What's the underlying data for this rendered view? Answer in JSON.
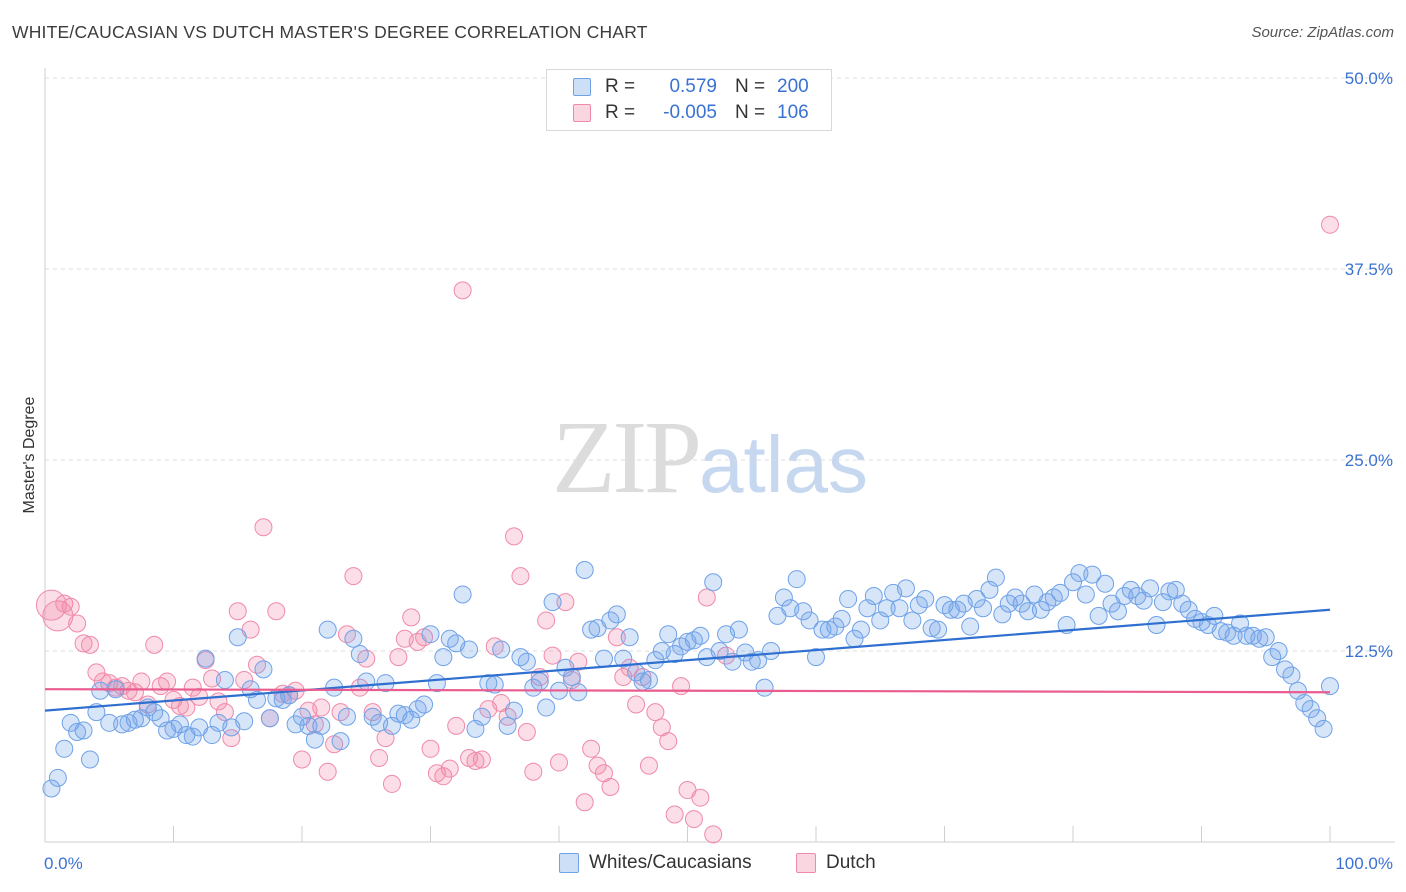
{
  "title": "WHITE/CAUCASIAN VS DUTCH MASTER'S DEGREE CORRELATION CHART",
  "source": "Source: ZipAtlas.com",
  "watermark": {
    "zip": "ZIP",
    "atlas": "atlas"
  },
  "legend": {
    "rows": [
      {
        "r_label": "R =",
        "r_value": "0.579",
        "n_label": "N =",
        "n_value": "200",
        "color": "#6fa2e8"
      },
      {
        "r_label": "R =",
        "r_value": "-0.005",
        "n_label": "N =",
        "n_value": "106",
        "color": "#f08aaa"
      }
    ]
  },
  "bottom_legend": [
    {
      "label": "Whites/Caucasians",
      "color": "#6fa2e8"
    },
    {
      "label": "Dutch",
      "color": "#f08aaa"
    }
  ],
  "chart_data": {
    "type": "scatter",
    "title": "WHITE/CAUCASIAN VS DUTCH MASTER'S DEGREE CORRELATION CHART",
    "ylabel": "Master's Degree",
    "xlabel": "",
    "xlim": [
      0,
      100
    ],
    "ylim": [
      0,
      50
    ],
    "x_tick_labels": [
      "0.0%",
      "100.0%"
    ],
    "y_tick_labels": [
      "12.5%",
      "25.0%",
      "37.5%",
      "50.0%"
    ],
    "y_ticks": [
      12.5,
      25.0,
      37.5,
      50.0
    ],
    "grid": "horizontal dashed",
    "series": [
      {
        "name": "Whites/Caucasians",
        "color": "#6fa2e8",
        "trend": {
          "x": [
            0,
            100
          ],
          "y": [
            8.6,
            15.2
          ]
        },
        "points": [
          [
            0.5,
            3.5
          ],
          [
            1,
            4.2
          ],
          [
            1.5,
            6.1
          ],
          [
            2,
            7.8
          ],
          [
            2.5,
            7.2
          ],
          [
            3,
            7.3
          ],
          [
            3.5,
            5.4
          ],
          [
            4,
            8.5
          ],
          [
            4.3,
            9.9
          ],
          [
            5,
            7.8
          ],
          [
            5.5,
            10
          ],
          [
            6,
            7.7
          ],
          [
            6.5,
            7.8
          ],
          [
            7,
            8
          ],
          [
            7.5,
            8.1
          ],
          [
            8,
            8.8
          ],
          [
            8.5,
            8.5
          ],
          [
            9,
            8.1
          ],
          [
            9.5,
            7.3
          ],
          [
            10,
            7.4
          ],
          [
            10.5,
            7.7
          ],
          [
            11,
            7
          ],
          [
            11.5,
            6.9
          ],
          [
            12,
            7.5
          ],
          [
            12.5,
            12
          ],
          [
            13,
            7
          ],
          [
            13.5,
            7.8
          ],
          [
            14,
            10.6
          ],
          [
            14.5,
            7.5
          ],
          [
            15,
            13.4
          ],
          [
            15.5,
            7.9
          ],
          [
            16,
            10
          ],
          [
            16.5,
            9.3
          ],
          [
            17,
            11.3
          ],
          [
            17.5,
            8.1
          ],
          [
            18,
            9.4
          ],
          [
            18.5,
            9.3
          ],
          [
            19,
            9.6
          ],
          [
            19.5,
            7.7
          ],
          [
            20,
            8.2
          ],
          [
            20.5,
            7.6
          ],
          [
            21,
            6.7
          ],
          [
            21.5,
            7.6
          ],
          [
            22,
            13.9
          ],
          [
            22.5,
            10.1
          ],
          [
            23,
            6.6
          ],
          [
            23.5,
            8.2
          ],
          [
            24,
            13.3
          ],
          [
            24.5,
            12.3
          ],
          [
            25,
            10.5
          ],
          [
            25.5,
            8.2
          ],
          [
            26,
            7.8
          ],
          [
            26.5,
            10.4
          ],
          [
            27,
            7.6
          ],
          [
            27.5,
            8.4
          ],
          [
            28,
            8.3
          ],
          [
            28.5,
            8
          ],
          [
            29,
            8.7
          ],
          [
            29.5,
            9
          ],
          [
            30,
            13.6
          ],
          [
            30.5,
            10.4
          ],
          [
            31,
            12.1
          ],
          [
            31.5,
            13.3
          ],
          [
            32,
            13
          ],
          [
            32.5,
            16.2
          ],
          [
            33,
            12.6
          ],
          [
            33.5,
            7.4
          ],
          [
            34,
            8.2
          ],
          [
            34.5,
            10.4
          ],
          [
            35,
            10.3
          ],
          [
            35.5,
            12.6
          ],
          [
            36,
            7.6
          ],
          [
            36.5,
            8.6
          ],
          [
            37,
            12.1
          ],
          [
            37.5,
            11.8
          ],
          [
            38,
            10.1
          ],
          [
            38.5,
            10.5
          ],
          [
            39,
            8.8
          ],
          [
            39.5,
            15.7
          ],
          [
            40,
            9.9
          ],
          [
            40.5,
            11.4
          ],
          [
            41,
            10.8
          ],
          [
            41.5,
            9.8
          ],
          [
            42,
            17.8
          ],
          [
            42.5,
            13.9
          ],
          [
            43,
            14
          ],
          [
            43.5,
            12
          ],
          [
            44,
            14.5
          ],
          [
            44.5,
            14.9
          ],
          [
            45,
            12
          ],
          [
            45.5,
            13.4
          ],
          [
            46,
            11.1
          ],
          [
            46.5,
            10.5
          ],
          [
            47,
            10.6
          ],
          [
            47.5,
            11.9
          ],
          [
            48,
            12.5
          ],
          [
            48.5,
            13.6
          ],
          [
            49,
            12.3
          ],
          [
            49.5,
            12.8
          ],
          [
            50,
            13.1
          ],
          [
            50.5,
            13.2
          ],
          [
            51,
            13.5
          ],
          [
            51.5,
            12.1
          ],
          [
            52,
            17
          ],
          [
            52.5,
            12.5
          ],
          [
            53,
            13.6
          ],
          [
            53.5,
            11.8
          ],
          [
            54,
            13.9
          ],
          [
            54.5,
            12.4
          ],
          [
            55,
            11.8
          ],
          [
            55.5,
            11.9
          ],
          [
            56,
            10.1
          ],
          [
            56.5,
            12.5
          ],
          [
            57,
            14.8
          ],
          [
            57.5,
            16
          ],
          [
            58,
            15.3
          ],
          [
            58.5,
            17.2
          ],
          [
            59,
            15.1
          ],
          [
            59.5,
            14.5
          ],
          [
            60,
            12.1
          ],
          [
            60.5,
            13.9
          ],
          [
            61,
            13.9
          ],
          [
            61.5,
            14.1
          ],
          [
            62,
            14.6
          ],
          [
            62.5,
            15.9
          ],
          [
            63,
            13.3
          ],
          [
            63.5,
            13.9
          ],
          [
            64,
            15.3
          ],
          [
            64.5,
            16.1
          ],
          [
            65,
            14.5
          ],
          [
            65.5,
            15.3
          ],
          [
            66,
            16.3
          ],
          [
            66.5,
            15.3
          ],
          [
            67,
            16.6
          ],
          [
            67.5,
            14.5
          ],
          [
            68,
            15.5
          ],
          [
            68.5,
            15.9
          ],
          [
            69,
            14
          ],
          [
            69.5,
            13.9
          ],
          [
            70,
            15.5
          ],
          [
            70.5,
            15.2
          ],
          [
            71,
            15.2
          ],
          [
            71.5,
            15.6
          ],
          [
            72,
            14.1
          ],
          [
            72.5,
            15.9
          ],
          [
            73,
            15.3
          ],
          [
            73.5,
            16.5
          ],
          [
            74,
            17.3
          ],
          [
            74.5,
            14.9
          ],
          [
            75,
            15.6
          ],
          [
            75.5,
            16
          ],
          [
            76,
            15.6
          ],
          [
            76.5,
            15.1
          ],
          [
            77,
            16.2
          ],
          [
            77.5,
            15.2
          ],
          [
            78,
            15.7
          ],
          [
            78.5,
            16
          ],
          [
            79,
            16.3
          ],
          [
            79.5,
            14.2
          ],
          [
            80,
            17
          ],
          [
            80.5,
            17.6
          ],
          [
            81,
            16.2
          ],
          [
            81.5,
            17.5
          ],
          [
            82,
            14.8
          ],
          [
            82.5,
            16.9
          ],
          [
            83,
            15.6
          ],
          [
            83.5,
            15.1
          ],
          [
            84,
            16.1
          ],
          [
            84.5,
            16.5
          ],
          [
            85,
            16.1
          ],
          [
            85.5,
            15.8
          ],
          [
            86,
            16.6
          ],
          [
            86.5,
            14.2
          ],
          [
            87,
            15.7
          ],
          [
            87.5,
            16.4
          ],
          [
            88,
            16.5
          ],
          [
            88.5,
            15.6
          ],
          [
            89,
            15.2
          ],
          [
            89.5,
            14.6
          ],
          [
            90,
            14.4
          ],
          [
            90.5,
            14.2
          ],
          [
            91,
            14.8
          ],
          [
            91.5,
            13.8
          ],
          [
            92,
            13.7
          ],
          [
            92.5,
            13.5
          ],
          [
            93,
            14.3
          ],
          [
            93.5,
            13.5
          ],
          [
            94,
            13.5
          ],
          [
            94.5,
            13.3
          ],
          [
            95,
            13.4
          ],
          [
            95.5,
            12.1
          ],
          [
            96,
            12.5
          ],
          [
            96.5,
            11.3
          ],
          [
            97,
            10.9
          ],
          [
            97.5,
            9.9
          ],
          [
            98,
            9.1
          ],
          [
            98.5,
            8.7
          ],
          [
            99,
            8.1
          ],
          [
            99.5,
            7.4
          ],
          [
            100,
            10.2
          ]
        ]
      },
      {
        "name": "Dutch",
        "color": "#f08aaa",
        "trend": {
          "x": [
            0,
            100
          ],
          "y": [
            10.0,
            9.8
          ]
        },
        "points": [
          [
            0.5,
            15.5
          ],
          [
            1,
            14.8
          ],
          [
            1.5,
            15.6
          ],
          [
            2,
            15.4
          ],
          [
            2.5,
            14.3
          ],
          [
            3,
            13
          ],
          [
            3.5,
            12.9
          ],
          [
            4,
            11.1
          ],
          [
            4.5,
            10.5
          ],
          [
            5,
            10.4
          ],
          [
            5.5,
            10.1
          ],
          [
            6,
            10.2
          ],
          [
            6.5,
            9.9
          ],
          [
            7,
            9.8
          ],
          [
            7.5,
            10.5
          ],
          [
            8,
            9
          ],
          [
            8.5,
            12.9
          ],
          [
            9,
            10.2
          ],
          [
            9.5,
            10.5
          ],
          [
            10,
            9.3
          ],
          [
            10.5,
            8.9
          ],
          [
            11,
            8.8
          ],
          [
            11.5,
            10.1
          ],
          [
            12,
            9.5
          ],
          [
            12.5,
            11.9
          ],
          [
            13,
            10.7
          ],
          [
            13.5,
            9.2
          ],
          [
            14,
            8.5
          ],
          [
            14.5,
            6.8
          ],
          [
            15,
            15.1
          ],
          [
            15.5,
            10.6
          ],
          [
            16,
            13.9
          ],
          [
            16.5,
            11.6
          ],
          [
            17,
            20.6
          ],
          [
            17.5,
            8.1
          ],
          [
            18,
            15.1
          ],
          [
            18.5,
            9.7
          ],
          [
            19,
            9.6
          ],
          [
            19.5,
            9.9
          ],
          [
            20,
            5.4
          ],
          [
            20.5,
            8.6
          ],
          [
            21,
            7.7
          ],
          [
            21.5,
            8.8
          ],
          [
            22,
            4.6
          ],
          [
            22.5,
            6.4
          ],
          [
            23,
            8.5
          ],
          [
            23.5,
            13.6
          ],
          [
            24,
            17.4
          ],
          [
            24.5,
            10.1
          ],
          [
            25,
            12
          ],
          [
            25.5,
            8.5
          ],
          [
            26,
            5.5
          ],
          [
            26.5,
            6.8
          ],
          [
            27,
            3.8
          ],
          [
            27.5,
            12.1
          ],
          [
            28,
            13.3
          ],
          [
            28.5,
            14.7
          ],
          [
            29,
            13.1
          ],
          [
            29.5,
            13.4
          ],
          [
            30,
            6.1
          ],
          [
            30.5,
            4.5
          ],
          [
            31,
            4.3
          ],
          [
            31.5,
            4.8
          ],
          [
            32,
            7.6
          ],
          [
            32.5,
            36.1
          ],
          [
            33,
            5.5
          ],
          [
            33.5,
            5.3
          ],
          [
            34,
            5.4
          ],
          [
            34.5,
            8.7
          ],
          [
            35,
            12.8
          ],
          [
            35.5,
            9.1
          ],
          [
            36,
            8.2
          ],
          [
            36.5,
            20
          ],
          [
            37,
            17.4
          ],
          [
            37.5,
            7.2
          ],
          [
            38,
            4.6
          ],
          [
            38.5,
            10.8
          ],
          [
            39,
            14.5
          ],
          [
            39.5,
            12.2
          ],
          [
            40,
            5.2
          ],
          [
            40.5,
            15.7
          ],
          [
            41,
            10.6
          ],
          [
            41.5,
            11.8
          ],
          [
            42,
            2.6
          ],
          [
            42.5,
            6.1
          ],
          [
            43,
            5
          ],
          [
            43.5,
            4.5
          ],
          [
            44,
            3.6
          ],
          [
            44.5,
            13.4
          ],
          [
            45,
            10.8
          ],
          [
            45.5,
            11.4
          ],
          [
            46,
            9
          ],
          [
            46.5,
            10.8
          ],
          [
            47,
            5
          ],
          [
            47.5,
            8.5
          ],
          [
            48,
            7.5
          ],
          [
            48.5,
            6.6
          ],
          [
            49,
            1.8
          ],
          [
            49.5,
            10.2
          ],
          [
            50,
            3.4
          ],
          [
            50.5,
            1.5
          ],
          [
            51,
            2.9
          ],
          [
            51.5,
            16
          ],
          [
            52,
            0.5
          ],
          [
            53,
            12.2
          ],
          [
            100,
            40.4
          ]
        ]
      }
    ]
  }
}
